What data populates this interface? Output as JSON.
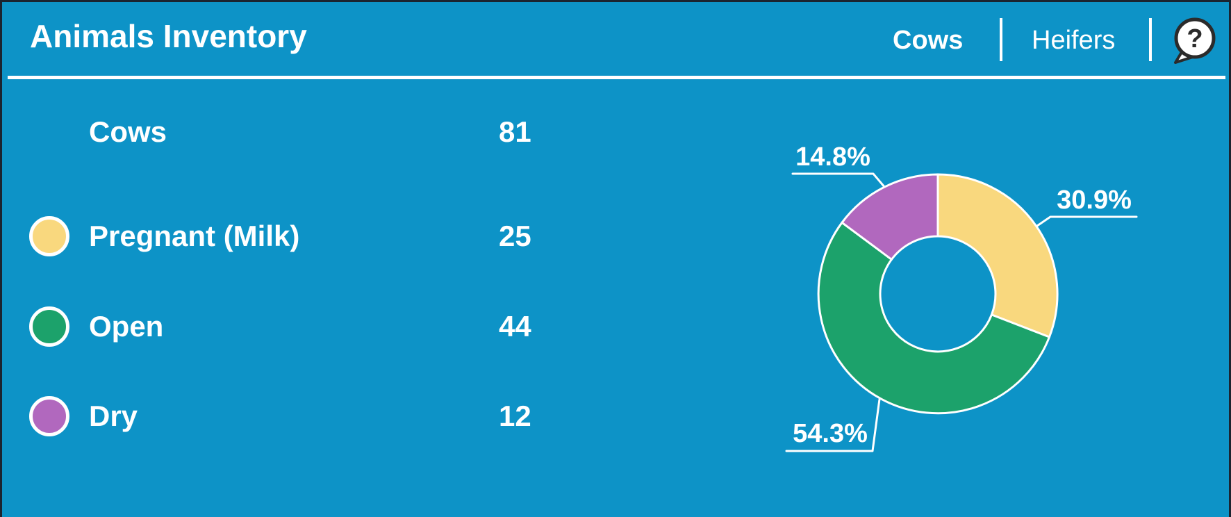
{
  "header": {
    "title": "Animals Inventory",
    "tabs": [
      {
        "label": "Cows",
        "active": true
      },
      {
        "label": "Heifers",
        "active": false
      }
    ],
    "help_glyph": "?"
  },
  "summary": {
    "label": "Cows",
    "value": "81"
  },
  "legend": [
    {
      "label": "Pregnant (Milk)",
      "value": "25",
      "color": "#F9D87E"
    },
    {
      "label": "Open",
      "value": "44",
      "color": "#1CA26B"
    },
    {
      "label": "Dry",
      "value": "12",
      "color": "#B168BE"
    }
  ],
  "colors": {
    "background": "#0D93C7",
    "frame_border": "#1B2430",
    "text": "#FFFFFF",
    "slice_separator": "#FFFFFF"
  },
  "chart_data": {
    "type": "donut",
    "total": 81,
    "start_angle_deg": 0,
    "direction": "clockwise",
    "hole_ratio": 0.48,
    "labels_position": "outside-callout",
    "slices": [
      {
        "label": "Pregnant (Milk)",
        "value": 25,
        "pct_label": "30.9%",
        "color": "#F9D87E"
      },
      {
        "label": "Open",
        "value": 44,
        "pct_label": "54.3%",
        "color": "#1CA26B"
      },
      {
        "label": "Dry",
        "value": 12,
        "pct_label": "14.8%",
        "color": "#B168BE"
      }
    ]
  }
}
